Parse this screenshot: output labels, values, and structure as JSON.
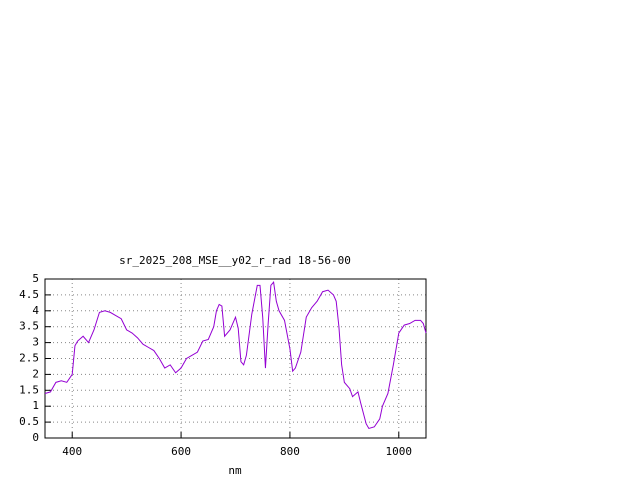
{
  "chart_data": {
    "type": "line",
    "title": "sr_2025_208_MSE__y02_r_rad 18-56-00",
    "x_label": "nm",
    "x": [
      350,
      360,
      370,
      380,
      390,
      400,
      405,
      410,
      420,
      430,
      440,
      450,
      460,
      470,
      480,
      490,
      500,
      510,
      520,
      530,
      540,
      550,
      560,
      570,
      580,
      590,
      600,
      610,
      620,
      630,
      640,
      650,
      660,
      665,
      670,
      675,
      680,
      690,
      700,
      705,
      710,
      715,
      720,
      730,
      740,
      745,
      750,
      755,
      760,
      765,
      770,
      775,
      780,
      790,
      800,
      805,
      810,
      820,
      830,
      840,
      850,
      860,
      870,
      880,
      885,
      890,
      895,
      900,
      910,
      915,
      925,
      930,
      940,
      945,
      955,
      965,
      970,
      980,
      990,
      1000,
      1010,
      1020,
      1030,
      1040,
      1045,
      1050
    ],
    "values": [
      1.4,
      1.45,
      1.75,
      1.8,
      1.75,
      2.0,
      2.9,
      3.05,
      3.2,
      3.0,
      3.4,
      3.95,
      4.0,
      3.95,
      3.85,
      3.75,
      3.4,
      3.3,
      3.15,
      2.95,
      2.85,
      2.75,
      2.5,
      2.2,
      2.3,
      2.05,
      2.2,
      2.5,
      2.6,
      2.7,
      3.05,
      3.1,
      3.5,
      4.0,
      4.2,
      4.15,
      3.2,
      3.4,
      3.8,
      3.45,
      2.4,
      2.3,
      2.6,
      3.9,
      4.8,
      4.8,
      3.8,
      2.2,
      3.6,
      4.8,
      4.9,
      4.3,
      4.0,
      3.7,
      2.8,
      2.1,
      2.2,
      2.7,
      3.8,
      4.1,
      4.3,
      4.6,
      4.65,
      4.5,
      4.3,
      3.5,
      2.3,
      1.75,
      1.55,
      1.3,
      1.45,
      1.1,
      0.45,
      0.3,
      0.35,
      0.6,
      1.0,
      1.4,
      2.3,
      3.3,
      3.55,
      3.6,
      3.7,
      3.7,
      3.6,
      3.3
    ],
    "color": "#9400d3",
    "xlim": [
      350,
      1050
    ],
    "xticks": [
      400,
      600,
      800,
      1000
    ],
    "ylim": [
      0,
      5
    ],
    "yticks": [
      0,
      0.5,
      1,
      1.5,
      2,
      2.5,
      3,
      3.5,
      4,
      4.5,
      5
    ],
    "grid": true
  }
}
